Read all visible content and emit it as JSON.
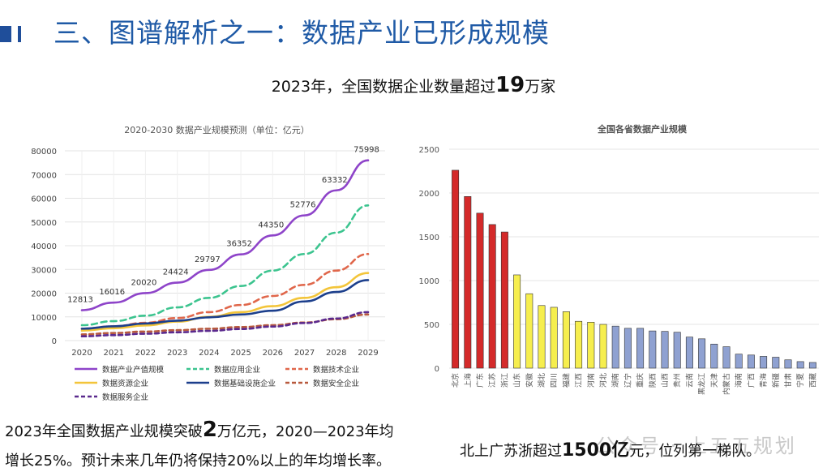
{
  "header": {
    "title": "三、图谱解析之一：数据产业已形成规模"
  },
  "subtitle": {
    "pre": "2023年，全国数据企业数量超过",
    "num": "19",
    "post": "万家"
  },
  "left_note": {
    "line1_pre": "2023年全国数据产业规模突破",
    "line1_num": "2",
    "line1_post": "万亿元，2020—2023年均",
    "line2": "增长25%。预计未来几年仍将保持20%以上的年均增长率。"
  },
  "right_note": {
    "pre": "北上广苏浙超过",
    "num": "1500亿",
    "post": "元，位列第一梯队。"
  },
  "watermark": "公众号 · 上五五规划",
  "chart_data": [
    {
      "type": "line",
      "title": "2020-2030 数据产业规模预测（单位：亿元）",
      "x": [
        "2020",
        "2021",
        "2022",
        "2023",
        "2024",
        "2025",
        "2026",
        "2027",
        "2028",
        "2029"
      ],
      "ylim": [
        0,
        80000
      ],
      "yticks": [
        0,
        10000,
        20000,
        30000,
        40000,
        50000,
        60000,
        70000,
        80000
      ],
      "series": [
        {
          "name": "数据产业产值规模",
          "color": "#8e44c9",
          "dash": "",
          "labeled": true,
          "values": [
            12813,
            16016,
            20020,
            24424,
            29797,
            36352,
            44350,
            52776,
            63332,
            75998
          ]
        },
        {
          "name": "数据应用企业",
          "color": "#3cc48f",
          "dash": "7,5",
          "labeled": false,
          "values": [
            6500,
            8200,
            10500,
            14000,
            18000,
            23000,
            29500,
            36500,
            45500,
            57000
          ]
        },
        {
          "name": "数据技术企业",
          "color": "#e0674b",
          "dash": "7,5",
          "labeled": false,
          "values": [
            5000,
            6000,
            7500,
            9500,
            12000,
            15000,
            18800,
            23500,
            29500,
            36500
          ]
        },
        {
          "name": "数据资源企业",
          "color": "#f3c53a",
          "dash": "",
          "labeled": false,
          "values": [
            4200,
            5200,
            6400,
            8000,
            10000,
            12000,
            14500,
            18000,
            22500,
            28500
          ]
        },
        {
          "name": "数据基础设施企业",
          "color": "#1c3f8c",
          "dash": "",
          "labeled": false,
          "values": [
            5000,
            6000,
            7200,
            8400,
            9800,
            11000,
            12600,
            16500,
            20500,
            25500
          ]
        },
        {
          "name": "数据安全企业",
          "color": "#b85a3e",
          "dash": "5,4",
          "labeled": false,
          "values": [
            2600,
            3200,
            3800,
            4400,
            5000,
            5700,
            6500,
            7600,
            9000,
            11000
          ]
        },
        {
          "name": "数据服务企业",
          "color": "#5b2a8e",
          "dash": "5,4",
          "labeled": false,
          "values": [
            1800,
            2300,
            2900,
            3500,
            4100,
            4900,
            5900,
            7400,
            9300,
            12000
          ]
        }
      ]
    },
    {
      "type": "bar",
      "title": "全国各省数据产业规模",
      "ylim": [
        0,
        2500
      ],
      "yticks": [
        0,
        500,
        1000,
        1500,
        2000,
        2500
      ],
      "categories": [
        "北京",
        "上海",
        "广东",
        "江苏",
        "浙江",
        "山东",
        "安徽",
        "湖北",
        "四川",
        "福建",
        "江西",
        "河南",
        "河北",
        "湖南",
        "辽宁",
        "重庆",
        "陕西",
        "山西",
        "贵州",
        "云南",
        "黑龙江",
        "天津",
        "内蒙古",
        "海南",
        "广西",
        "青海",
        "新疆",
        "甘肃",
        "宁夏",
        "西藏"
      ],
      "values": [
        2260,
        1960,
        1770,
        1640,
        1555,
        1065,
        850,
        715,
        695,
        645,
        535,
        525,
        500,
        480,
        455,
        455,
        425,
        420,
        410,
        355,
        335,
        275,
        245,
        160,
        150,
        135,
        125,
        95,
        75,
        65
      ],
      "tiers": [
        1,
        1,
        1,
        1,
        1,
        2,
        2,
        2,
        2,
        2,
        2,
        2,
        2,
        3,
        3,
        3,
        3,
        3,
        3,
        3,
        3,
        3,
        3,
        3,
        3,
        3,
        3,
        3,
        3,
        3
      ],
      "tier_colors": {
        "1": "#d42a2a",
        "2": "#f6ee4e",
        "3": "#8fa1d1"
      }
    }
  ]
}
